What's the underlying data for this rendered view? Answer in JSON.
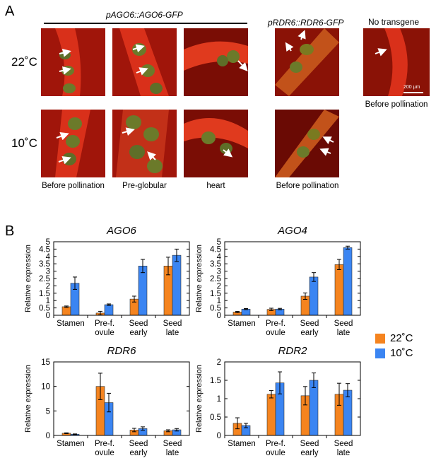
{
  "panelA": {
    "letter": "A",
    "construct_ago6": "pAGO6::AGO6-GFP",
    "construct_rdr6": "pRDR6::RDR6-GFP",
    "no_transgene": "No transgene",
    "temp_22": "22˚C",
    "temp_10": "10˚C",
    "captions": [
      "Before pollination",
      "Pre-globular",
      "heart",
      "Before pollination"
    ],
    "caption_right": "Before pollination",
    "scale_bar": "200 μm"
  },
  "panelB": {
    "letter": "B",
    "legend": [
      {
        "label": "22˚C",
        "color": "#f5841f"
      },
      {
        "label": "10˚C",
        "color": "#3b85f2"
      }
    ]
  },
  "chart_data": [
    {
      "type": "bar",
      "title": "AGO6",
      "ylabel": "Relative expression",
      "ylim": [
        0,
        5
      ],
      "yticks": [
        "0",
        "0.5",
        "1",
        "1.5",
        "2",
        "2.5",
        "3",
        "3.5",
        "4",
        "4.5",
        "5"
      ],
      "categories": [
        [
          "Stamen"
        ],
        [
          "Pre-f.",
          "ovule"
        ],
        [
          "Seed",
          "early"
        ],
        [
          "Seed",
          "late"
        ]
      ],
      "series": [
        {
          "name": "22˚C",
          "values": [
            0.58,
            0.15,
            1.1,
            3.35
          ],
          "errors": [
            0.05,
            0.12,
            0.2,
            0.6
          ],
          "color": "#f5841f"
        },
        {
          "name": "10˚C",
          "values": [
            2.18,
            0.72,
            3.35,
            4.08
          ],
          "errors": [
            0.42,
            0.05,
            0.45,
            0.42
          ],
          "color": "#3b85f2"
        }
      ]
    },
    {
      "type": "bar",
      "title": "AGO4",
      "ylabel": "Relative expression",
      "ylim": [
        0,
        5
      ],
      "yticks": [
        "0",
        "0.5",
        "1",
        "1.5",
        "2",
        "2.5",
        "3",
        "3.5",
        "4",
        "4.5",
        "5"
      ],
      "categories": [
        [
          "Stamen"
        ],
        [
          "Pre-f.",
          "ovule"
        ],
        [
          "Seed",
          "early"
        ],
        [
          "Seed",
          "late"
        ]
      ],
      "series": [
        {
          "name": "22˚C",
          "values": [
            0.22,
            0.4,
            1.3,
            3.45
          ],
          "errors": [
            0.04,
            0.08,
            0.22,
            0.35
          ],
          "color": "#f5841f"
        },
        {
          "name": "10˚C",
          "values": [
            0.42,
            0.42,
            2.6,
            4.6
          ],
          "errors": [
            0.04,
            0.05,
            0.3,
            0.1
          ],
          "color": "#3b85f2"
        }
      ]
    },
    {
      "type": "bar",
      "title": "RDR6",
      "ylabel": "Relative expression",
      "ylim": [
        0,
        15
      ],
      "yticks": [
        "0",
        "5",
        "10",
        "15"
      ],
      "categories": [
        [
          "Stamen"
        ],
        [
          "Pre-f.",
          "ovule"
        ],
        [
          "Seed",
          "early"
        ],
        [
          "Seed",
          "late"
        ]
      ],
      "series": [
        {
          "name": "22˚C",
          "values": [
            0.45,
            10.0,
            1.1,
            0.95
          ],
          "errors": [
            0.08,
            2.7,
            0.35,
            0.2
          ],
          "color": "#f5841f"
        },
        {
          "name": "10˚C",
          "values": [
            0.25,
            6.7,
            1.4,
            1.15
          ],
          "errors": [
            0.06,
            1.9,
            0.35,
            0.25
          ],
          "color": "#3b85f2"
        }
      ]
    },
    {
      "type": "bar",
      "title": "RDR2",
      "ylabel": "Relative expression",
      "ylim": [
        0,
        2
      ],
      "yticks": [
        "0",
        "0.5",
        "1",
        "1.5",
        "2"
      ],
      "categories": [
        [
          "Stamen"
        ],
        [
          "Pre-f.",
          "ovule"
        ],
        [
          "Seed",
          "early"
        ],
        [
          "Seed",
          "late"
        ]
      ],
      "series": [
        {
          "name": "22˚C",
          "values": [
            0.33,
            1.12,
            1.08,
            1.12
          ],
          "errors": [
            0.15,
            0.1,
            0.25,
            0.3
          ],
          "color": "#f5841f"
        },
        {
          "name": "10˚C",
          "values": [
            0.27,
            1.43,
            1.5,
            1.23
          ],
          "errors": [
            0.06,
            0.3,
            0.2,
            0.18
          ],
          "color": "#3b85f2"
        }
      ]
    }
  ]
}
